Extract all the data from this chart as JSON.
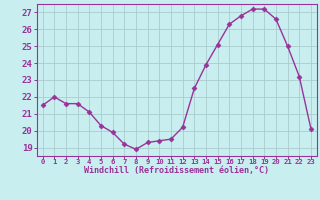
{
  "x": [
    0,
    1,
    2,
    3,
    4,
    5,
    6,
    7,
    8,
    9,
    10,
    11,
    12,
    13,
    14,
    15,
    16,
    17,
    18,
    19,
    20,
    21,
    22,
    23
  ],
  "y": [
    21.5,
    22.0,
    21.6,
    21.6,
    21.1,
    20.3,
    19.9,
    19.2,
    18.9,
    19.3,
    19.4,
    19.5,
    20.2,
    22.5,
    23.9,
    25.1,
    26.3,
    26.8,
    27.2,
    27.2,
    26.6,
    25.0,
    23.2,
    20.1
  ],
  "line_color": "#993399",
  "marker_color": "#993399",
  "bg_color": "#c8eef0",
  "grid_color": "#aacccc",
  "xlabel": "Windchill (Refroidissement éolien,°C)",
  "xlabel_color": "#993399",
  "tick_color": "#993399",
  "ylim": [
    18.5,
    27.5
  ],
  "xlim": [
    -0.5,
    23.5
  ],
  "yticks": [
    19,
    20,
    21,
    22,
    23,
    24,
    25,
    26,
    27
  ],
  "xticks": [
    0,
    1,
    2,
    3,
    4,
    5,
    6,
    7,
    8,
    9,
    10,
    11,
    12,
    13,
    14,
    15,
    16,
    17,
    18,
    19,
    20,
    21,
    22,
    23
  ],
  "xlabel_fontsize": 6.0,
  "ytick_fontsize": 6.5,
  "xtick_fontsize": 5.2
}
